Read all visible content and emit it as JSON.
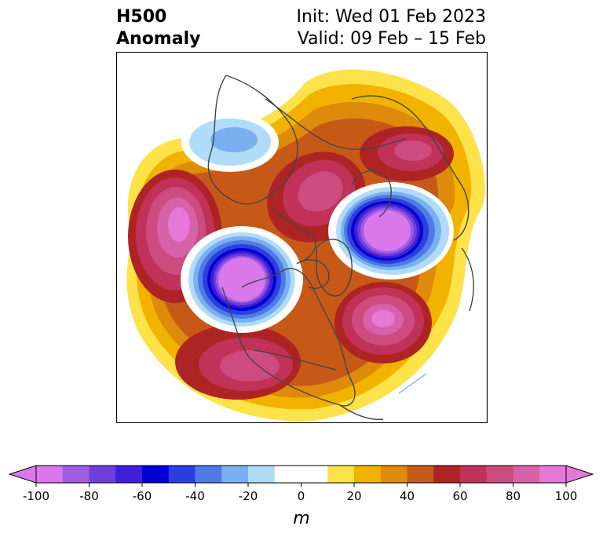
{
  "title": {
    "left_line1": "H500",
    "left_line2": "Anomaly",
    "right_line1": "Init: Wed 01 Feb 2023",
    "right_line2": "Valid: 09 Feb – 15 Feb"
  },
  "colorbar": {
    "unit_label": "m",
    "tick_labels": [
      "-100",
      "-80",
      "-60",
      "-40",
      "-20",
      "0",
      "20",
      "40",
      "60",
      "80",
      "100"
    ],
    "bins": [
      {
        "from": -100,
        "to": -90,
        "color": "#d878ea"
      },
      {
        "from": -90,
        "to": -80,
        "color": "#a05ce2"
      },
      {
        "from": -80,
        "to": -70,
        "color": "#6f3fdc"
      },
      {
        "from": -70,
        "to": -60,
        "color": "#3f1ed8"
      },
      {
        "from": -60,
        "to": -50,
        "color": "#0000d2"
      },
      {
        "from": -50,
        "to": -40,
        "color": "#2a3fde"
      },
      {
        "from": -40,
        "to": -30,
        "color": "#4f7ae6"
      },
      {
        "from": -30,
        "to": -20,
        "color": "#78b0f0"
      },
      {
        "from": -20,
        "to": -10,
        "color": "#b0dcf8"
      },
      {
        "from": -10,
        "to": 10,
        "color": "#ffffff"
      },
      {
        "from": 10,
        "to": 20,
        "color": "#fde24a"
      },
      {
        "from": 20,
        "to": 30,
        "color": "#f2b200"
      },
      {
        "from": 30,
        "to": 40,
        "color": "#de8a0a"
      },
      {
        "from": 40,
        "to": 50,
        "color": "#c65918"
      },
      {
        "from": 50,
        "to": 60,
        "color": "#ae2425"
      },
      {
        "from": 60,
        "to": 70,
        "color": "#c03258"
      },
      {
        "from": 70,
        "to": 80,
        "color": "#cc4c80"
      },
      {
        "from": 80,
        "to": 90,
        "color": "#d862aa"
      },
      {
        "from": 90,
        "to": 100,
        "color": "#e678d8"
      }
    ],
    "under_color": "#d878ea",
    "over_color": "#e678d8"
  },
  "map": {
    "land_outline_color": "#444444",
    "anomaly_centers": [
      {
        "value": 100,
        "color_key": "over"
      },
      {
        "value": -100,
        "color_key": "under"
      },
      {
        "value": -100,
        "color_key": "under"
      },
      {
        "value": 90,
        "color_key": "over"
      },
      {
        "value": 75,
        "color_key": "pos"
      },
      {
        "value": 75,
        "color_key": "pos"
      },
      {
        "value": 70,
        "color_key": "pos"
      },
      {
        "value": -30,
        "color_key": "neg"
      }
    ]
  }
}
